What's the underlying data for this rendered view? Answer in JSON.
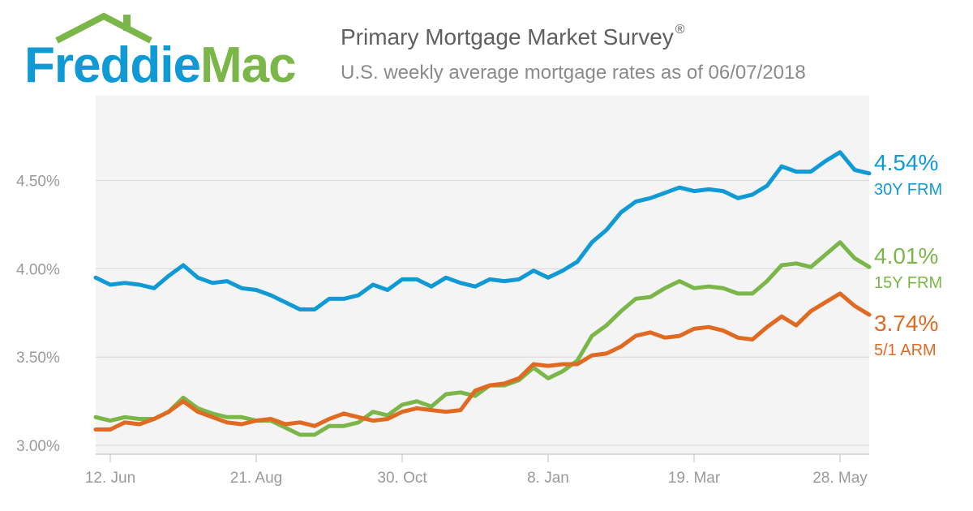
{
  "brand": {
    "logo_part1": "Freddie",
    "logo_part2": "Mac",
    "color_blue": "#0f9ad6",
    "color_green": "#7ab648"
  },
  "header": {
    "title": "Primary Mortgage Market Survey",
    "title_mark": "®",
    "subtitle": "U.S. weekly average mortgage rates as of 06/07/2018"
  },
  "chart_data": {
    "type": "line",
    "x_tick_labels": [
      "12. Jun",
      "21. Aug",
      "30. Oct",
      "8. Jan",
      "19. Mar",
      "28. May"
    ],
    "x_tick_index": [
      1,
      11,
      21,
      31,
      41,
      51
    ],
    "y_tick_labels": [
      "3.00%",
      "3.50%",
      "4.00%",
      "4.50%"
    ],
    "y_ticks": [
      3.0,
      3.5,
      4.0,
      4.5
    ],
    "ylim": [
      2.95,
      4.98
    ],
    "grid": true,
    "series": [
      {
        "name": "30Y FRM",
        "end_label": "4.54%",
        "color": "#0f9ad6",
        "values": [
          3.95,
          3.91,
          3.92,
          3.91,
          3.89,
          3.96,
          4.02,
          3.95,
          3.92,
          3.93,
          3.89,
          3.88,
          3.85,
          3.81,
          3.77,
          3.77,
          3.83,
          3.83,
          3.85,
          3.91,
          3.88,
          3.94,
          3.94,
          3.9,
          3.95,
          3.92,
          3.9,
          3.94,
          3.93,
          3.94,
          3.99,
          3.95,
          3.99,
          4.04,
          4.15,
          4.22,
          4.32,
          4.38,
          4.4,
          4.43,
          4.46,
          4.44,
          4.45,
          4.44,
          4.4,
          4.42,
          4.47,
          4.58,
          4.55,
          4.55,
          4.61,
          4.66,
          4.56,
          4.54
        ]
      },
      {
        "name": "15Y FRM",
        "end_label": "4.01%",
        "color": "#7ab648",
        "values": [
          3.16,
          3.14,
          3.16,
          3.15,
          3.15,
          3.19,
          3.27,
          3.21,
          3.18,
          3.16,
          3.16,
          3.14,
          3.14,
          3.1,
          3.06,
          3.06,
          3.11,
          3.11,
          3.13,
          3.19,
          3.17,
          3.23,
          3.25,
          3.22,
          3.29,
          3.3,
          3.28,
          3.34,
          3.34,
          3.37,
          3.44,
          3.38,
          3.42,
          3.48,
          3.62,
          3.68,
          3.76,
          3.83,
          3.84,
          3.89,
          3.93,
          3.89,
          3.9,
          3.89,
          3.86,
          3.86,
          3.93,
          4.02,
          4.03,
          4.01,
          4.08,
          4.15,
          4.06,
          4.01
        ]
      },
      {
        "name": "5/1 ARM",
        "end_label": "3.74%",
        "color": "#e06a22",
        "values": [
          3.09,
          3.09,
          3.13,
          3.12,
          3.15,
          3.19,
          3.25,
          3.19,
          3.16,
          3.13,
          3.12,
          3.14,
          3.15,
          3.12,
          3.13,
          3.11,
          3.15,
          3.18,
          3.16,
          3.14,
          3.15,
          3.19,
          3.21,
          3.2,
          3.19,
          3.2,
          3.31,
          3.34,
          3.35,
          3.38,
          3.46,
          3.45,
          3.46,
          3.46,
          3.51,
          3.52,
          3.56,
          3.62,
          3.64,
          3.61,
          3.62,
          3.66,
          3.67,
          3.65,
          3.61,
          3.6,
          3.67,
          3.73,
          3.68,
          3.76,
          3.81,
          3.86,
          3.79,
          3.74
        ]
      }
    ]
  }
}
